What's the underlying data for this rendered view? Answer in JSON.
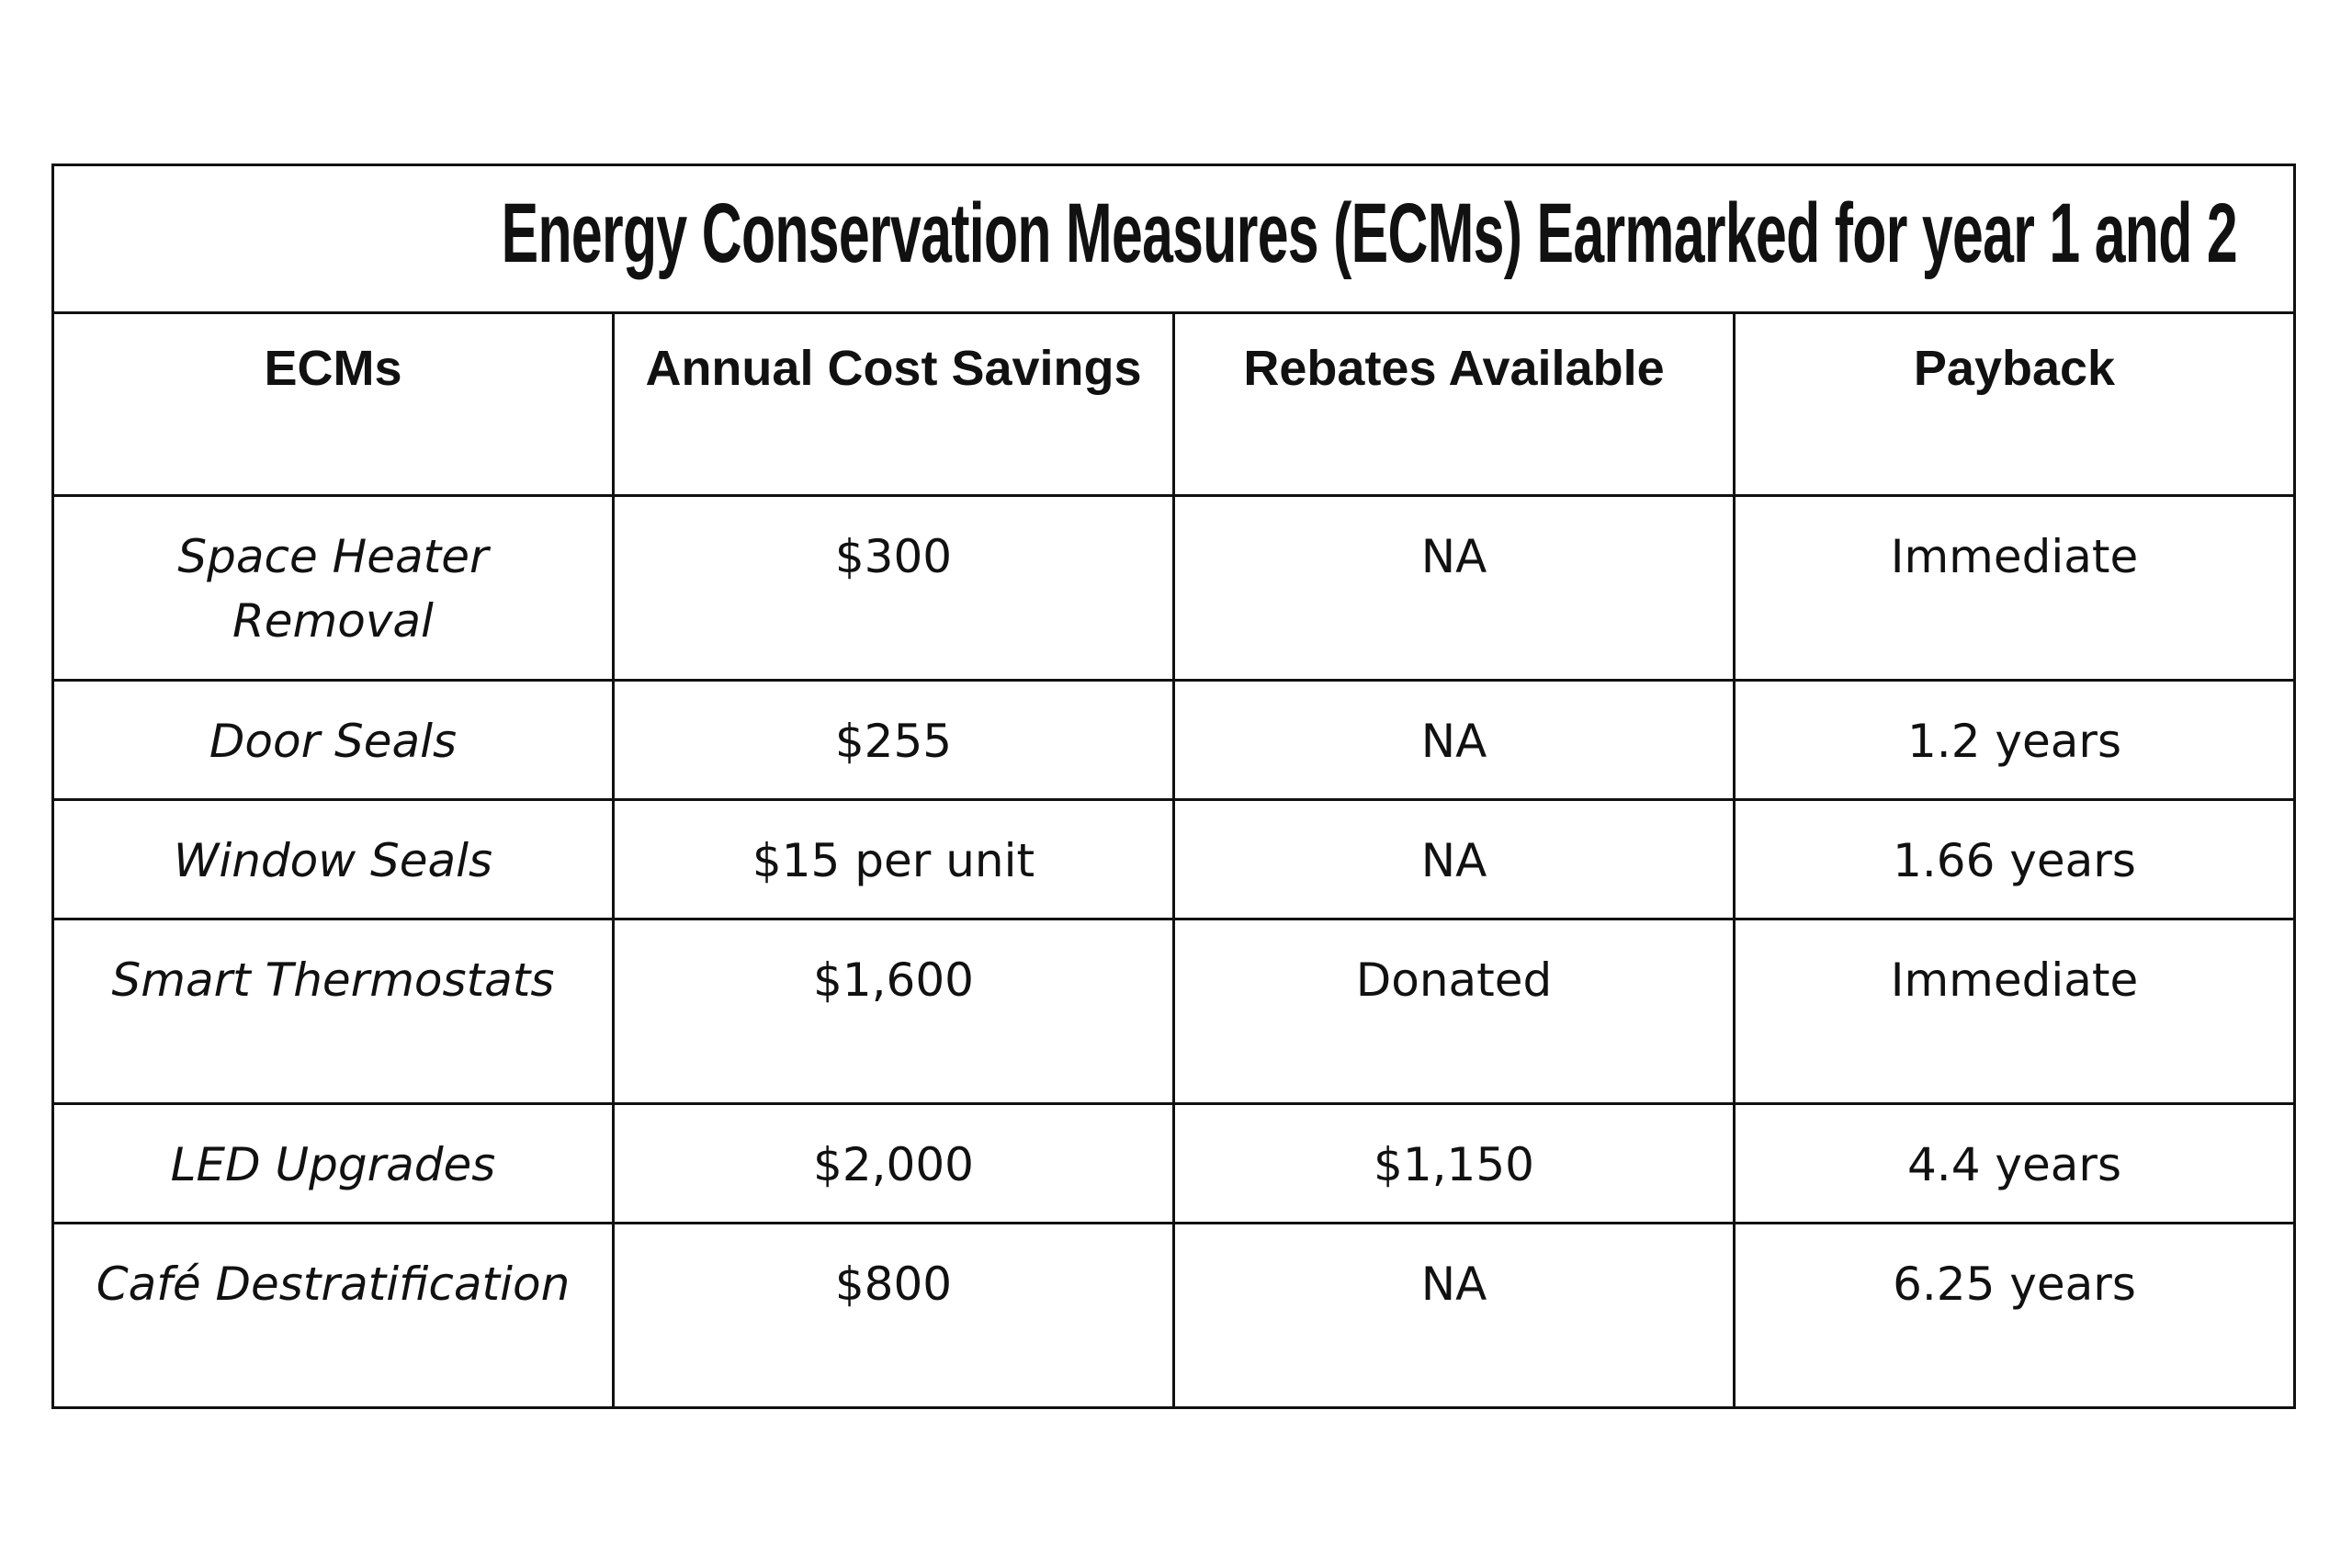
{
  "header": {
    "title": "Energy Conservation Measures (ECMs) Earmarked for year 1 and 2"
  },
  "table": {
    "columns": [
      "ECMs",
      "Annual Cost Savings",
      "Rebates Available",
      "Payback"
    ],
    "rows": [
      [
        "Space Heater Removal",
        "$300",
        "NA",
        "Immediate"
      ],
      [
        "Door Seals",
        "$255",
        "NA",
        "1.2 years"
      ],
      [
        "Window Seals",
        "$15 per unit",
        "NA",
        "1.66 years"
      ],
      [
        "Smart Thermostats",
        "$1,600",
        "Donated",
        "Immediate"
      ],
      [
        "LED Upgrades",
        "$2,000",
        "$1,150",
        "4.4 years"
      ],
      [
        "Café Destratification",
        "$800",
        "NA",
        "6.25 years"
      ]
    ]
  }
}
